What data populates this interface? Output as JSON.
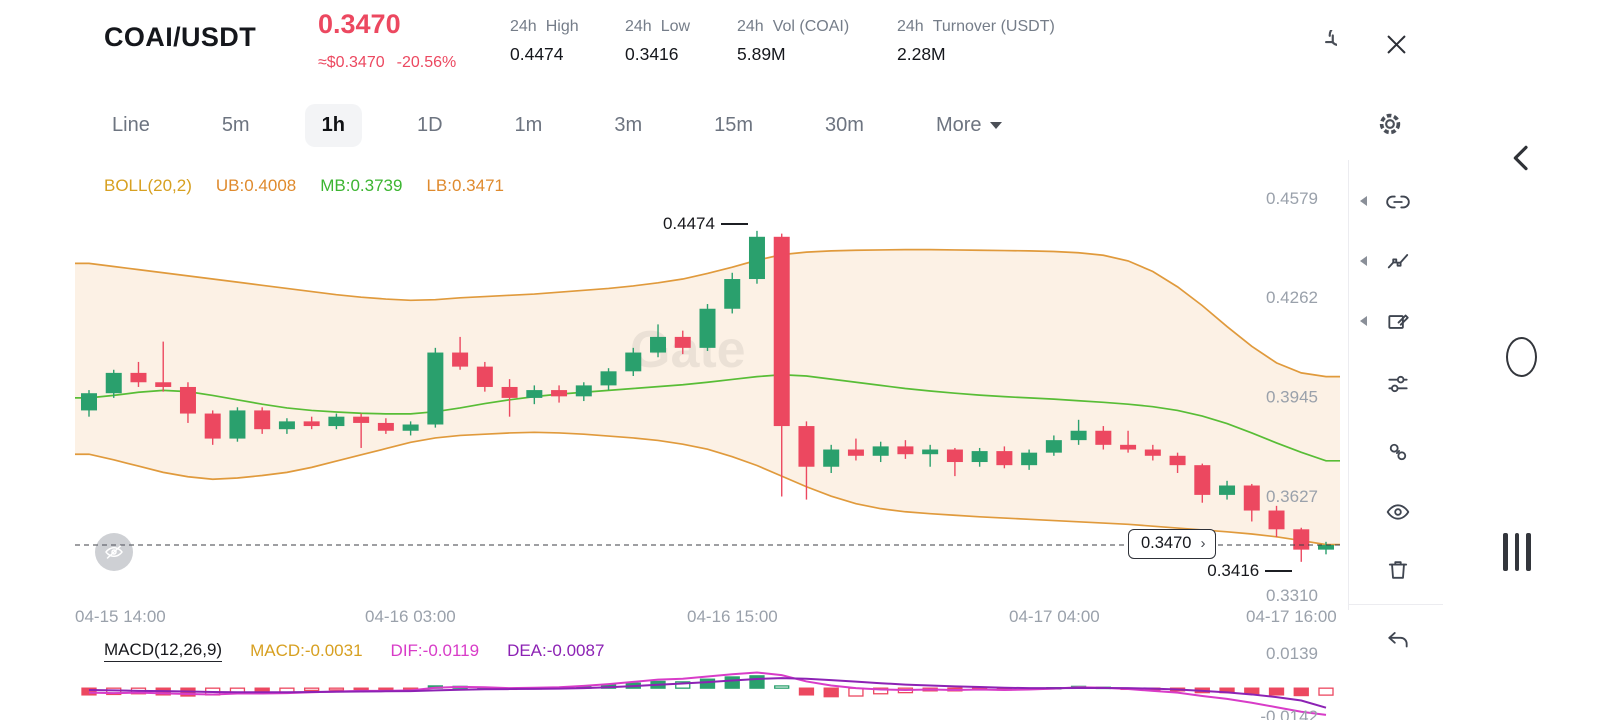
{
  "colors": {
    "up": "#2aa06d",
    "down": "#ec4860",
    "boll_line": "#e09a3c",
    "boll_fill": "rgba(238,178,110,0.18)",
    "boll_mid": "#58bd36",
    "dif": "#d83cc8",
    "dea": "#8c22b4",
    "axis_text": "#9aa1ab"
  },
  "header": {
    "pair": "COAI/USDT",
    "price": "0.3470",
    "approx": "≈$0.3470",
    "change": "-20.56%",
    "stats": [
      {
        "prefix": "24h",
        "label": "High",
        "value": "0.4474"
      },
      {
        "prefix": "24h",
        "label": "Low",
        "value": "0.3416"
      },
      {
        "prefix": "24h",
        "label": "Vol (COAI)",
        "value": "5.89M"
      },
      {
        "prefix": "24h",
        "label": "Turnover (USDT)",
        "value": "2.28M"
      }
    ]
  },
  "tabs": {
    "items": [
      "Line",
      "5m",
      "1h",
      "1D",
      "1m",
      "3m",
      "15m",
      "30m"
    ],
    "active": "1h",
    "more": "More"
  },
  "boll": {
    "title": "BOLL(20,2)",
    "ub": "UB:0.4008",
    "mb": "MB:0.3739",
    "lb": "LB:0.3471"
  },
  "macd_labels": {
    "title": "MACD(12,26,9)",
    "macd": "MACD:-0.0031",
    "dif": "DIF:-0.0119",
    "dea": "DEA:-0.0087"
  },
  "watermark": "Gate",
  "icons": {
    "header": [
      "refresh",
      "close"
    ],
    "tabbar": [
      "settings-gear"
    ],
    "right_toolbar": [
      "link",
      "indicator-line",
      "draw-rectangle",
      "sliders",
      "compare",
      "visibility",
      "trash",
      "undo"
    ],
    "edge": [
      "chevron-left",
      "oval",
      "grip-bars"
    ],
    "chart": [
      "eye-off",
      "chevron-right"
    ]
  },
  "chart_data": {
    "type": "candlestick",
    "interval": "1h",
    "y_ticks": [
      0.4579,
      0.4262,
      0.3945,
      0.3627,
      0.331
    ],
    "x_labels": [
      "04-15 14:00",
      "04-16 03:00",
      "04-16 15:00",
      "04-17 04:00",
      "04-17 16:00"
    ],
    "annotations": {
      "high": "0.4474",
      "low": "0.3416",
      "last_price": "0.3470"
    },
    "candles": [
      [
        0.39,
        0.3965,
        0.388,
        0.3955
      ],
      [
        0.3955,
        0.403,
        0.394,
        0.402
      ],
      [
        0.402,
        0.4055,
        0.3975,
        0.399
      ],
      [
        0.399,
        0.412,
        0.396,
        0.3975
      ],
      [
        0.3975,
        0.399,
        0.386,
        0.389
      ],
      [
        0.389,
        0.39,
        0.379,
        0.381
      ],
      [
        0.381,
        0.391,
        0.38,
        0.39
      ],
      [
        0.39,
        0.391,
        0.3825,
        0.384
      ],
      [
        0.384,
        0.3875,
        0.3825,
        0.3865
      ],
      [
        0.3865,
        0.388,
        0.384,
        0.385
      ],
      [
        0.385,
        0.389,
        0.384,
        0.388
      ],
      [
        0.388,
        0.389,
        0.378,
        0.386
      ],
      [
        0.386,
        0.3875,
        0.3825,
        0.3835
      ],
      [
        0.3835,
        0.3865,
        0.382,
        0.3855
      ],
      [
        0.3855,
        0.41,
        0.3845,
        0.4085
      ],
      [
        0.4085,
        0.4135,
        0.403,
        0.404
      ],
      [
        0.404,
        0.4055,
        0.396,
        0.3975
      ],
      [
        0.3975,
        0.4,
        0.388,
        0.394
      ],
      [
        0.394,
        0.398,
        0.392,
        0.3965
      ],
      [
        0.3965,
        0.398,
        0.3925,
        0.3945
      ],
      [
        0.3945,
        0.399,
        0.393,
        0.398
      ],
      [
        0.398,
        0.4035,
        0.3965,
        0.4025
      ],
      [
        0.4025,
        0.41,
        0.401,
        0.4085
      ],
      [
        0.4085,
        0.4175,
        0.407,
        0.4135
      ],
      [
        0.4135,
        0.4155,
        0.408,
        0.41
      ],
      [
        0.41,
        0.424,
        0.409,
        0.4225
      ],
      [
        0.4225,
        0.434,
        0.421,
        0.432
      ],
      [
        0.432,
        0.4474,
        0.4305,
        0.4455
      ],
      [
        0.4455,
        0.4465,
        0.3625,
        0.385
      ],
      [
        0.385,
        0.3865,
        0.3615,
        0.372
      ],
      [
        0.372,
        0.379,
        0.37,
        0.3775
      ],
      [
        0.3775,
        0.381,
        0.374,
        0.3755
      ],
      [
        0.3755,
        0.38,
        0.3735,
        0.3785
      ],
      [
        0.3785,
        0.3805,
        0.3745,
        0.376
      ],
      [
        0.376,
        0.379,
        0.372,
        0.3775
      ],
      [
        0.3775,
        0.378,
        0.369,
        0.3735
      ],
      [
        0.3735,
        0.378,
        0.372,
        0.377
      ],
      [
        0.377,
        0.3785,
        0.3715,
        0.3725
      ],
      [
        0.3725,
        0.3775,
        0.371,
        0.3765
      ],
      [
        0.3765,
        0.382,
        0.3755,
        0.3805
      ],
      [
        0.3805,
        0.387,
        0.379,
        0.3835
      ],
      [
        0.3835,
        0.385,
        0.3775,
        0.379
      ],
      [
        0.379,
        0.3835,
        0.3765,
        0.3775
      ],
      [
        0.3775,
        0.379,
        0.374,
        0.3755
      ],
      [
        0.3755,
        0.3765,
        0.37,
        0.3725
      ],
      [
        0.3725,
        0.373,
        0.3605,
        0.363
      ],
      [
        0.363,
        0.3675,
        0.3615,
        0.366
      ],
      [
        0.366,
        0.3665,
        0.3545,
        0.358
      ],
      [
        0.358,
        0.3595,
        0.3495,
        0.352
      ],
      [
        0.352,
        0.3525,
        0.3416,
        0.3455
      ],
      [
        0.3455,
        0.348,
        0.344,
        0.347
      ]
    ],
    "boll": {
      "ub": [
        0.437,
        0.436,
        0.435,
        0.434,
        0.433,
        0.432,
        0.431,
        0.43,
        0.429,
        0.428,
        0.427,
        0.4262,
        0.4256,
        0.4252,
        0.4254,
        0.426,
        0.4264,
        0.4268,
        0.4272,
        0.4278,
        0.4284,
        0.429,
        0.4298,
        0.4308,
        0.432,
        0.4338,
        0.4358,
        0.438,
        0.4398,
        0.4406,
        0.441,
        0.4412,
        0.4413,
        0.4414,
        0.4414,
        0.4413,
        0.4412,
        0.4411,
        0.441,
        0.4408,
        0.4404,
        0.4396,
        0.4378,
        0.4344,
        0.4295,
        0.4235,
        0.4168,
        0.4105,
        0.4052,
        0.402,
        0.4008
      ],
      "mb": [
        0.394,
        0.3948,
        0.3958,
        0.3964,
        0.396,
        0.3948,
        0.3934,
        0.392,
        0.3908,
        0.39,
        0.3895,
        0.3891,
        0.3889,
        0.3889,
        0.3896,
        0.3908,
        0.3922,
        0.3934,
        0.3944,
        0.3952,
        0.3958,
        0.3964,
        0.397,
        0.3976,
        0.3982,
        0.399,
        0.3999,
        0.4008,
        0.4014,
        0.401,
        0.4,
        0.399,
        0.398,
        0.397,
        0.3962,
        0.3955,
        0.3949,
        0.3944,
        0.394,
        0.3936,
        0.3931,
        0.3926,
        0.392,
        0.3912,
        0.39,
        0.3882,
        0.3858,
        0.3828,
        0.3796,
        0.3766,
        0.3739
      ],
      "lb": [
        0.376,
        0.3742,
        0.3722,
        0.3702,
        0.3688,
        0.368,
        0.3684,
        0.3692,
        0.3702,
        0.3718,
        0.3738,
        0.3758,
        0.3778,
        0.3798,
        0.3812,
        0.382,
        0.3824,
        0.3828,
        0.383,
        0.3828,
        0.3824,
        0.3818,
        0.3812,
        0.3804,
        0.3792,
        0.3776,
        0.3752,
        0.3724,
        0.369,
        0.3656,
        0.3626,
        0.3602,
        0.3586,
        0.3576,
        0.357,
        0.3565,
        0.356,
        0.3556,
        0.3552,
        0.3548,
        0.3544,
        0.354,
        0.3536,
        0.353,
        0.3524,
        0.3518,
        0.3512,
        0.3505,
        0.3496,
        0.3484,
        0.3471
      ]
    },
    "macd": {
      "axis_labels": [
        "0.0139",
        "-0.0142"
      ],
      "y_range": [
        0.0139,
        -0.0142
      ],
      "hist": [
        -0.003,
        -0.0028,
        -0.0025,
        -0.003,
        -0.0035,
        -0.003,
        -0.002,
        -0.0022,
        -0.0018,
        -0.001,
        -0.0008,
        -0.0005,
        -0.0008,
        -0.0006,
        0.001,
        0.0008,
        0.0002,
        -0.0004,
        0.0002,
        0.0003,
        0.0008,
        0.0015,
        0.0022,
        0.003,
        0.0028,
        0.004,
        0.005,
        0.0055,
        0.001,
        -0.003,
        -0.0038,
        -0.0035,
        -0.0025,
        -0.002,
        -0.0012,
        -0.0012,
        -0.0006,
        -0.0008,
        -0.0004,
        0.0002,
        0.0008,
        0.0004,
        -0.0002,
        -0.0008,
        -0.0012,
        -0.002,
        -0.002,
        -0.0025,
        -0.003,
        -0.0033,
        -0.0031
      ],
      "dif": [
        -0.002,
        -0.0022,
        -0.002,
        -0.0023,
        -0.0026,
        -0.0028,
        -0.0024,
        -0.0024,
        -0.0022,
        -0.0018,
        -0.0015,
        -0.0012,
        -0.0012,
        -0.001,
        0.0002,
        0.0006,
        0.0004,
        0.0,
        0.0002,
        0.0004,
        0.001,
        0.0018,
        0.0028,
        0.0038,
        0.0042,
        0.0052,
        0.0062,
        0.007,
        0.0058,
        0.003,
        0.0012,
        0.0,
        -0.0006,
        -0.0008,
        -0.0006,
        -0.0008,
        -0.0006,
        -0.0008,
        -0.0006,
        -0.0002,
        0.0004,
        0.0002,
        -0.0004,
        -0.0012,
        -0.002,
        -0.0035,
        -0.0048,
        -0.0065,
        -0.0085,
        -0.0105,
        -0.0119
      ],
      "dea": [
        -0.0008,
        -0.001,
        -0.0012,
        -0.0013,
        -0.0015,
        -0.0017,
        -0.0018,
        -0.0018,
        -0.0018,
        -0.0017,
        -0.0016,
        -0.0015,
        -0.0014,
        -0.0013,
        -0.001,
        -0.0007,
        -0.0005,
        -0.0004,
        -0.0003,
        -0.0002,
        0.0,
        0.0004,
        0.0009,
        0.0015,
        0.0021,
        0.0027,
        0.0034,
        0.0041,
        0.0045,
        0.0042,
        0.0036,
        0.0029,
        0.0022,
        0.0016,
        0.0012,
        0.0008,
        0.0005,
        0.0002,
        0.0,
        0.0,
        0.0001,
        0.0001,
        0.0,
        -0.0002,
        -0.0006,
        -0.0012,
        -0.0019,
        -0.0028,
        -0.004,
        -0.0055,
        -0.0087
      ]
    }
  }
}
